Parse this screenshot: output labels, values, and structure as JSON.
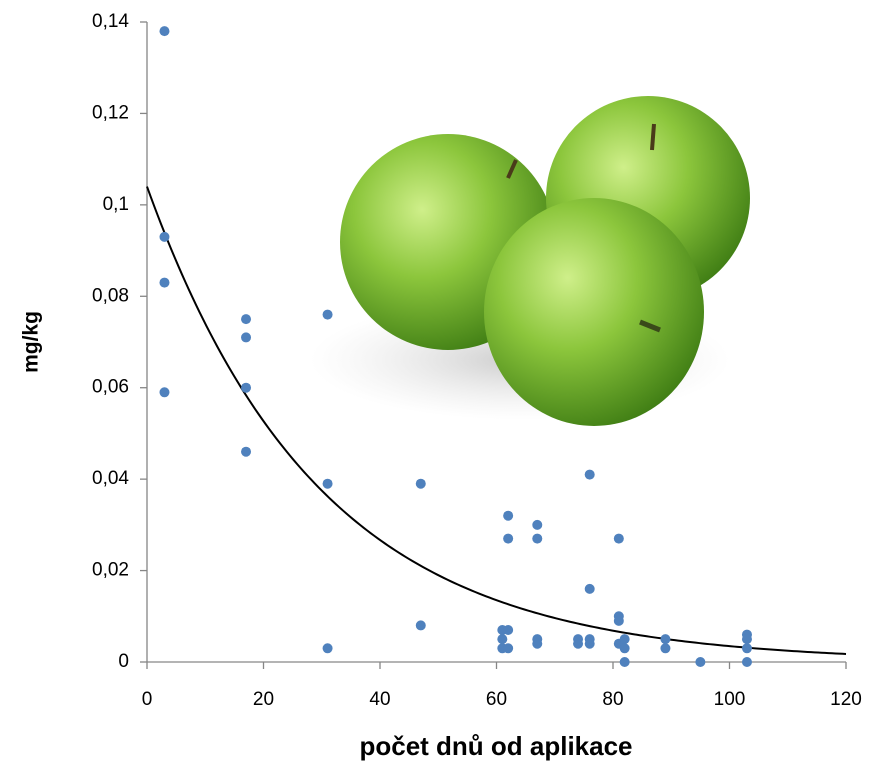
{
  "chart_data": {
    "type": "scatter",
    "x_label": "počet dnů od aplikace",
    "y_label": "mg/kg",
    "color": "#4f81bd",
    "x": [
      3,
      3,
      3,
      3,
      17,
      17,
      17,
      17,
      31,
      31,
      31,
      47,
      47,
      61,
      61,
      61,
      62,
      62,
      62,
      62,
      67,
      67,
      67,
      67,
      74,
      74,
      76,
      76,
      76,
      76,
      81,
      81,
      81,
      81,
      82,
      82,
      82,
      89,
      89,
      95,
      103,
      103,
      103,
      103
    ],
    "values": [
      0.138,
      0.093,
      0.083,
      0.059,
      0.075,
      0.071,
      0.06,
      0.046,
      0.076,
      0.039,
      0.003,
      0.039,
      0.008,
      0.007,
      0.005,
      0.003,
      0.032,
      0.027,
      0.007,
      0.003,
      0.03,
      0.027,
      0.005,
      0.004,
      0.005,
      0.004,
      0.041,
      0.016,
      0.005,
      0.004,
      0.027,
      0.01,
      0.009,
      0.004,
      0.005,
      0.003,
      0,
      0.005,
      0.003,
      0,
      0.006,
      0.005,
      0.003,
      0
    ],
    "trendline": {
      "type": "exponential",
      "coefficient": 0.104,
      "rate": -0.034,
      "color": "#000000"
    },
    "xlim": [
      0,
      120
    ],
    "ylim": [
      0,
      0.14
    ],
    "xticks": [
      0,
      20,
      40,
      60,
      80,
      100,
      120
    ],
    "yticks": [
      0,
      {
        "value": 0.02,
        "label": "0,02"
      },
      {
        "value": 0.04,
        "label": "0,04"
      },
      {
        "value": 0.06,
        "label": "0,06"
      },
      {
        "value": 0.08,
        "label": "0,08"
      },
      {
        "value": 0.1,
        "label": "0,1"
      },
      {
        "value": 0.12,
        "label": "0,12"
      },
      {
        "value": 0.14,
        "label": "0,14"
      }
    ],
    "grid": false
  }
}
